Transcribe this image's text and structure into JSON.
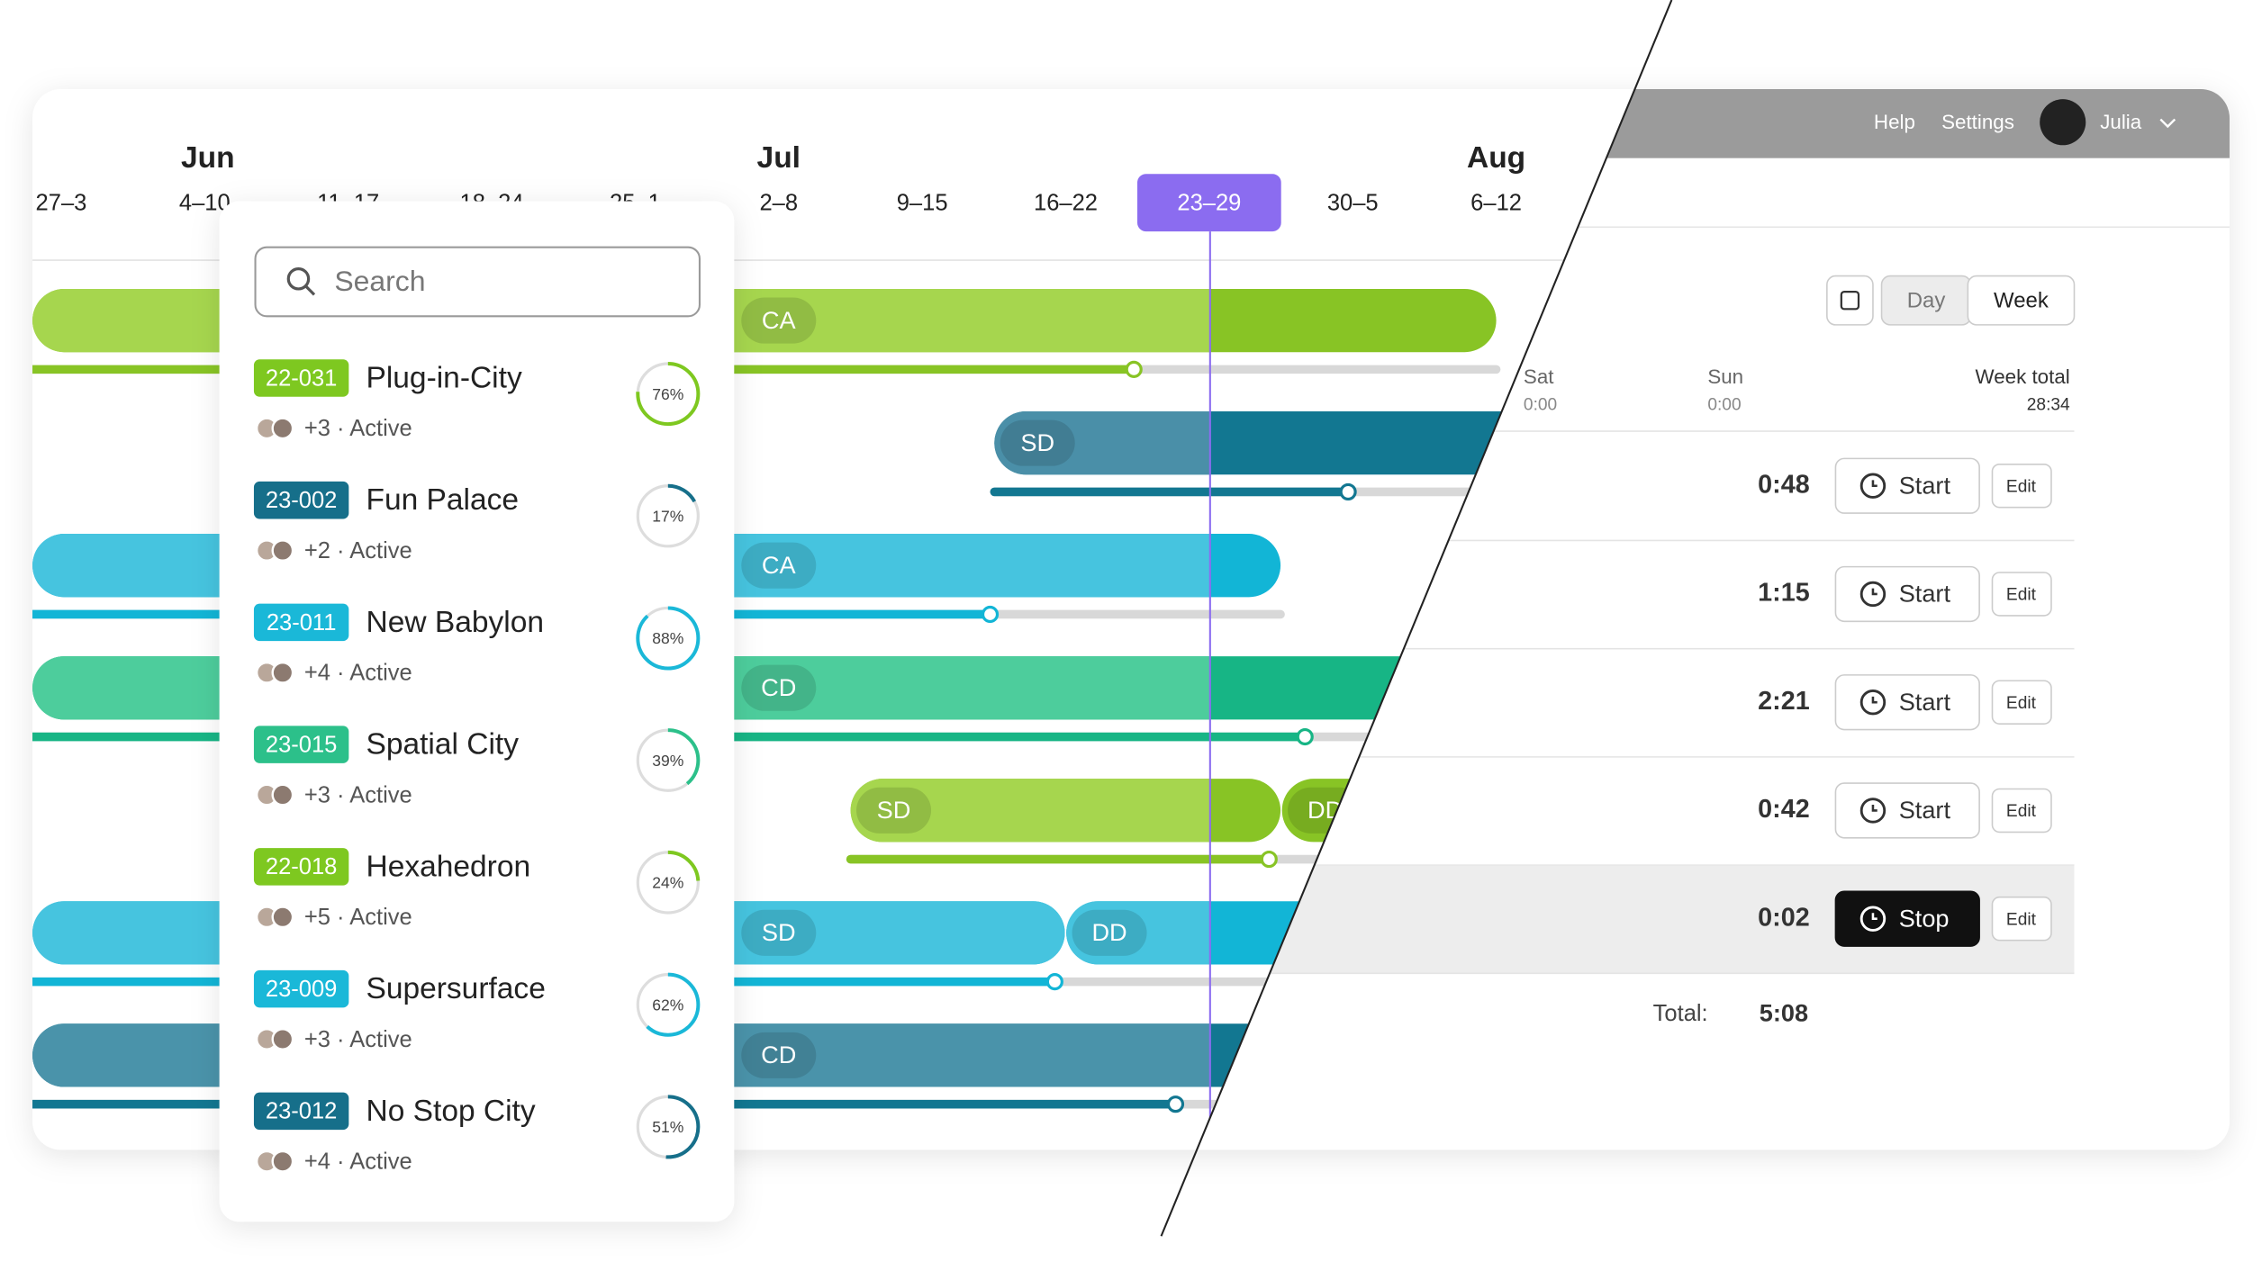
{
  "timeline": {
    "months": [
      "Jun",
      "Jul",
      "Aug"
    ],
    "weeks": [
      "27–3",
      "4–10",
      "11–17",
      "18–24",
      "25–1",
      "2–8",
      "9–15",
      "16–22",
      "23–29",
      "30–5",
      "6–12"
    ]
  },
  "gantt": {
    "bars": [
      [
        "CA"
      ],
      [
        "SD"
      ],
      [
        "CA"
      ],
      [
        "CD"
      ],
      [
        "SD",
        "DD"
      ],
      [
        "SD",
        "DD"
      ],
      [
        "CD"
      ]
    ]
  },
  "search": {
    "placeholder": "Search"
  },
  "projects": [
    {
      "code": "22-031",
      "name": "Plug-in-City",
      "color": "#7ec820",
      "meta": "+3 · Active",
      "progress": {
        "value": 76,
        "label": "76%"
      }
    },
    {
      "code": "23-002",
      "name": "Fun Palace",
      "color": "#166f8a",
      "meta": "+2 · Active",
      "progress": {
        "value": 17,
        "label": "17%"
      }
    },
    {
      "code": "23-011",
      "name": "New Babylon",
      "color": "#1ab8d8",
      "meta": "+4 · Active",
      "progress": {
        "value": 88,
        "label": "88%"
      }
    },
    {
      "code": "23-015",
      "name": "Spatial City",
      "color": "#2cc08a",
      "meta": "+3 · Active",
      "progress": {
        "value": 39,
        "label": "39%"
      }
    },
    {
      "code": "22-018",
      "name": "Hexahedron",
      "color": "#7ec820",
      "meta": "+5 · Active",
      "progress": {
        "value": 24,
        "label": "24%"
      }
    },
    {
      "code": "23-009",
      "name": "Supersurface",
      "color": "#1ab8d8",
      "meta": "+3 · Active",
      "progress": {
        "value": 62,
        "label": "62%"
      }
    },
    {
      "code": "23-012",
      "name": "No Stop City",
      "color": "#166f8a",
      "meta": "+4 · Active",
      "progress": {
        "value": 51,
        "label": "51%"
      }
    }
  ],
  "topbar": {
    "links": [
      "Help",
      "Settings"
    ],
    "user": "Julia"
  },
  "view_toggle": [
    "Day",
    "Week"
  ],
  "week": {
    "days": [
      {
        "name": "Sat",
        "time": "0:00"
      },
      {
        "name": "Sun",
        "time": "0:00"
      }
    ],
    "total_label": "Week total",
    "total": "28:34"
  },
  "entries": [
    {
      "time": "0:48",
      "action": "Start",
      "edit": "Edit"
    },
    {
      "time": "1:15",
      "action": "Start",
      "edit": "Edit"
    },
    {
      "time": "2:21",
      "action": "Start",
      "edit": "Edit"
    },
    {
      "time": "0:42",
      "action": "Start",
      "edit": "Edit"
    },
    {
      "time": "0:02",
      "action": "Stop",
      "edit": "Edit"
    }
  ],
  "footer": {
    "label": "Total:",
    "value": "5:08"
  }
}
